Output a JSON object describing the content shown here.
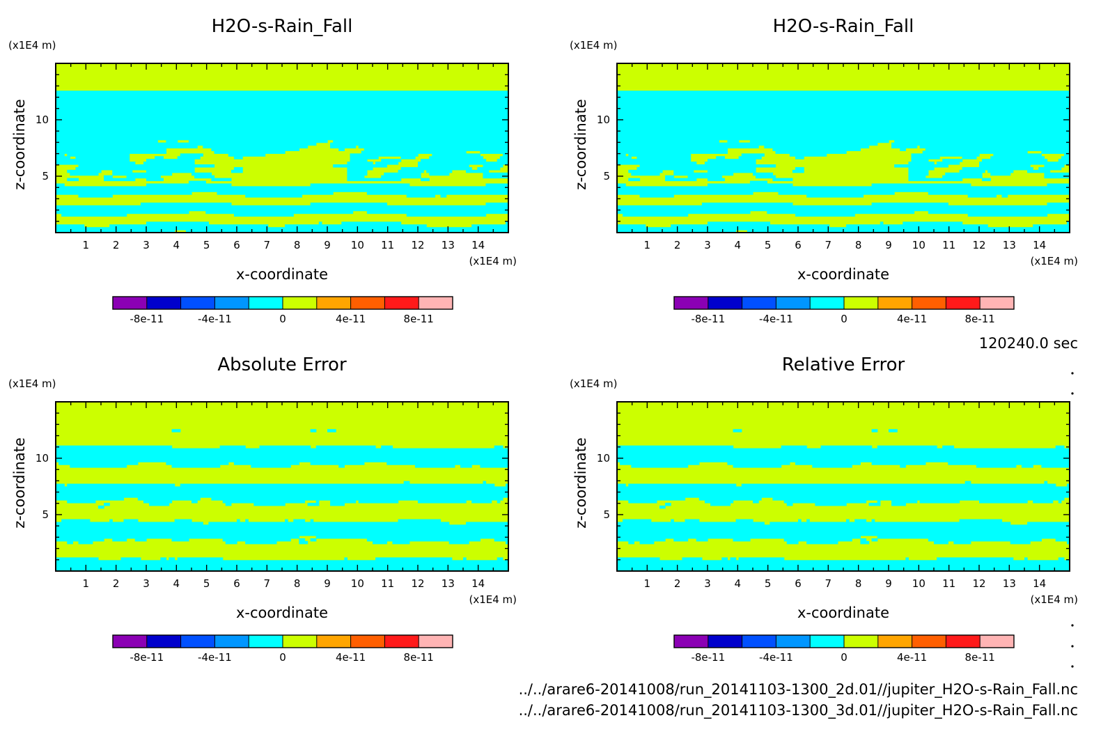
{
  "figure": {
    "time_label": "120240.0 sec",
    "file_lines": [
      "../../arare6-20141008/run_20141103-1300_2d.01//jupiter_H2O-s-Rain_Fall.nc",
      "../../arare6-20141008/run_20141103-1300_3d.01//jupiter_H2O-s-Rain_Fall.nc"
    ]
  },
  "chart_data": [
    {
      "type": "heatmap",
      "title": "H2O-s-Rain_Fall",
      "xlabel": "x-coordinate",
      "ylabel": "z-coordinate",
      "x_unit": "(x1E4 m)",
      "y_unit": "(x1E4 m)",
      "xlim": [
        0,
        15
      ],
      "ylim": [
        0,
        15
      ],
      "x_ticks": [
        1,
        2,
        3,
        4,
        5,
        6,
        7,
        8,
        9,
        10,
        11,
        12,
        13,
        14
      ],
      "y_ticks": [
        5,
        10
      ],
      "pattern": "stratified",
      "colorbar": {
        "levels": [
          -1e-10,
          -8e-11,
          -6e-11,
          -4e-11,
          -2e-11,
          0,
          2e-11,
          4e-11,
          6e-11,
          8e-11,
          1e-10
        ],
        "colors": [
          "#8b00b4",
          "#0000cc",
          "#0050ff",
          "#0096ff",
          "#00ffff",
          "#ccff00",
          "#ffa500",
          "#ff5f00",
          "#ff1a1a",
          "#ffb4b4"
        ],
        "tick_labels": [
          "-8e-11",
          "-4e-11",
          "0",
          "4e-11",
          "8e-11"
        ]
      }
    },
    {
      "type": "heatmap",
      "title": "H2O-s-Rain_Fall",
      "xlabel": "x-coordinate",
      "ylabel": "z-coordinate",
      "x_unit": "(x1E4 m)",
      "y_unit": "(x1E4 m)",
      "xlim": [
        0,
        15
      ],
      "ylim": [
        0,
        15
      ],
      "x_ticks": [
        1,
        2,
        3,
        4,
        5,
        6,
        7,
        8,
        9,
        10,
        11,
        12,
        13,
        14
      ],
      "y_ticks": [
        5,
        10
      ],
      "pattern": "stratified",
      "colorbar": {
        "levels": [
          -1e-10,
          -8e-11,
          -6e-11,
          -4e-11,
          -2e-11,
          0,
          2e-11,
          4e-11,
          6e-11,
          8e-11,
          1e-10
        ],
        "colors": [
          "#8b00b4",
          "#0000cc",
          "#0050ff",
          "#0096ff",
          "#00ffff",
          "#ccff00",
          "#ffa500",
          "#ff5f00",
          "#ff1a1a",
          "#ffb4b4"
        ],
        "tick_labels": [
          "-8e-11",
          "-4e-11",
          "0",
          "4e-11",
          "8e-11"
        ]
      }
    },
    {
      "type": "heatmap",
      "title": "Absolute Error",
      "xlabel": "x-coordinate",
      "ylabel": "z-coordinate",
      "x_unit": "(x1E4 m)",
      "y_unit": "(x1E4 m)",
      "xlim": [
        0,
        15
      ],
      "ylim": [
        0,
        15
      ],
      "x_ticks": [
        1,
        2,
        3,
        4,
        5,
        6,
        7,
        8,
        9,
        10,
        11,
        12,
        13,
        14
      ],
      "y_ticks": [
        5,
        10
      ],
      "pattern": "noisy",
      "colorbar": {
        "levels": [
          -1e-10,
          -8e-11,
          -6e-11,
          -4e-11,
          -2e-11,
          0,
          2e-11,
          4e-11,
          6e-11,
          8e-11,
          1e-10
        ],
        "colors": [
          "#8b00b4",
          "#0000cc",
          "#0050ff",
          "#0096ff",
          "#00ffff",
          "#ccff00",
          "#ffa500",
          "#ff5f00",
          "#ff1a1a",
          "#ffb4b4"
        ],
        "tick_labels": [
          "-8e-11",
          "-4e-11",
          "0",
          "4e-11",
          "8e-11"
        ]
      }
    },
    {
      "type": "heatmap",
      "title": "Relative Error",
      "xlabel": "x-coordinate",
      "ylabel": "z-coordinate",
      "x_unit": "(x1E4 m)",
      "y_unit": "(x1E4 m)",
      "xlim": [
        0,
        15
      ],
      "ylim": [
        0,
        15
      ],
      "x_ticks": [
        1,
        2,
        3,
        4,
        5,
        6,
        7,
        8,
        9,
        10,
        11,
        12,
        13,
        14
      ],
      "y_ticks": [
        5,
        10
      ],
      "pattern": "noisy",
      "colorbar": {
        "levels": [
          -1e-10,
          -8e-11,
          -6e-11,
          -4e-11,
          -2e-11,
          0,
          2e-11,
          4e-11,
          6e-11,
          8e-11,
          1e-10
        ],
        "colors": [
          "#8b00b4",
          "#0000cc",
          "#0050ff",
          "#0096ff",
          "#00ffff",
          "#ccff00",
          "#ffa500",
          "#ff5f00",
          "#ff1a1a",
          "#ffb4b4"
        ],
        "tick_labels": [
          "-8e-11",
          "-4e-11",
          "0",
          "4e-11",
          "8e-11"
        ]
      }
    }
  ]
}
